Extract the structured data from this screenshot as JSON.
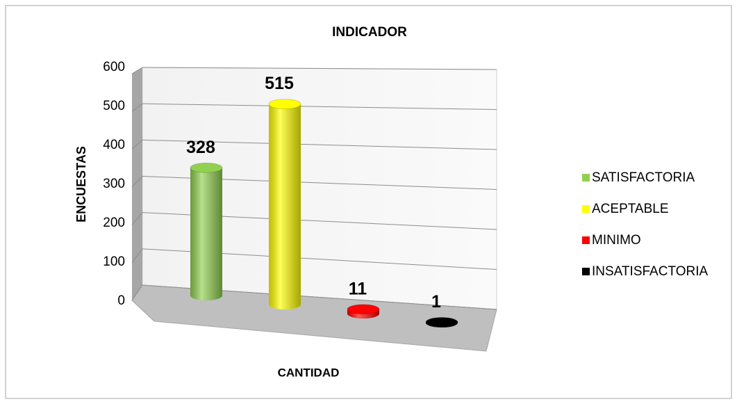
{
  "chart_data": {
    "type": "bar3d",
    "title": "INDICADOR",
    "y_label": "ENCUESTAS",
    "x_label": "CANTIDAD",
    "categories": [
      null
    ],
    "series": [
      {
        "name": "SATISFACTORIA",
        "color": "#92d050",
        "values": [
          328
        ]
      },
      {
        "name": "ACEPTABLE",
        "color": "#ffff00",
        "values": [
          515
        ]
      },
      {
        "name": "MINIMO",
        "color": "#ff0000",
        "values": [
          11
        ]
      },
      {
        "name": "INSATISFACTORIA",
        "color": "#000000",
        "values": [
          1
        ]
      }
    ],
    "ylim": [
      0,
      600
    ],
    "yticks": [
      0,
      100,
      200,
      300,
      400,
      500,
      600
    ],
    "grid": true,
    "legend": "right"
  }
}
